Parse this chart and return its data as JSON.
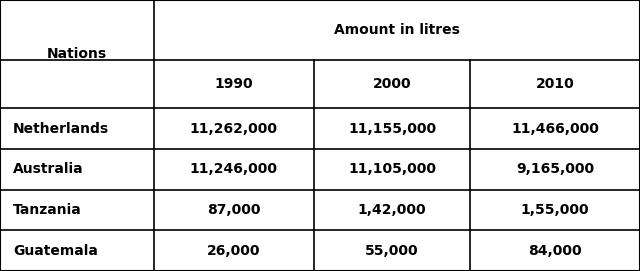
{
  "col_header_top": "Amount in litres",
  "col_header_years": [
    "1990",
    "2000",
    "2010"
  ],
  "row_header": "Nations",
  "nations": [
    "Netherlands",
    "Australia",
    "Tanzania",
    "Guatemala"
  ],
  "values": [
    [
      "11,262,000",
      "11,155,000",
      "11,466,000"
    ],
    [
      "11,246,000",
      "11,105,000",
      "9,165,000"
    ],
    [
      "87,000",
      "1,42,000",
      "1,55,000"
    ],
    [
      "26,000",
      "55,000",
      "84,000"
    ]
  ],
  "bg_color": "#ffffff",
  "text_color": "#000000",
  "border_color": "#000000",
  "font_size": 10,
  "header_font_size": 10,
  "bold_font": "DejaVu Sans"
}
